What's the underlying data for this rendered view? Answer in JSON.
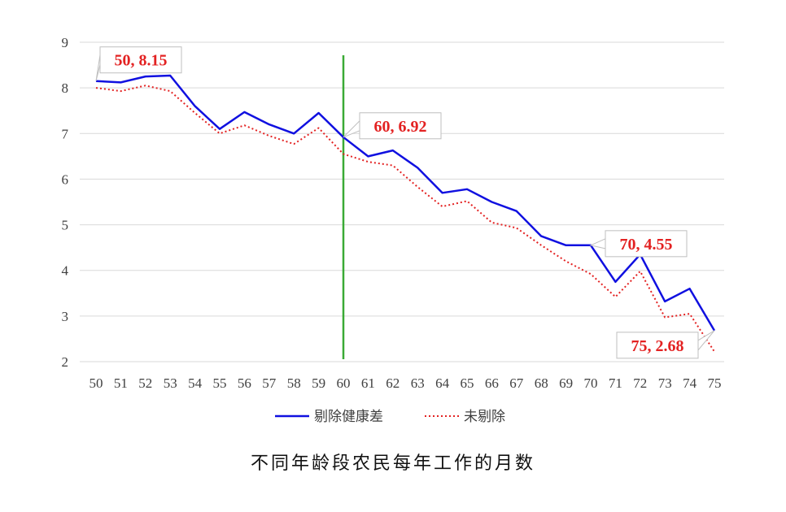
{
  "chart_data": {
    "type": "line",
    "title": "不同年龄段农民每年工作的月数",
    "xlabel": "",
    "ylabel": "",
    "x": [
      50,
      51,
      52,
      53,
      54,
      55,
      56,
      57,
      58,
      59,
      60,
      61,
      62,
      63,
      64,
      65,
      66,
      67,
      68,
      69,
      70,
      71,
      72,
      73,
      74,
      75
    ],
    "ylim": [
      2,
      9
    ],
    "yticks": [
      2,
      3,
      4,
      5,
      6,
      7,
      8,
      9
    ],
    "grid": true,
    "legend": "bottom",
    "reference_line": {
      "x": 60,
      "color": "#3aaa35"
    },
    "series": [
      {
        "name": "剔除健康差",
        "style": "solid",
        "color": "#1010e0",
        "values": [
          8.15,
          8.12,
          8.25,
          8.27,
          7.6,
          7.1,
          7.47,
          7.2,
          7.0,
          7.45,
          6.92,
          6.5,
          6.63,
          6.25,
          5.7,
          5.78,
          5.5,
          5.3,
          4.75,
          4.55,
          4.55,
          3.75,
          4.35,
          3.32,
          3.6,
          2.68
        ]
      },
      {
        "name": "未剔除",
        "style": "dotted",
        "color": "#e32222",
        "values": [
          8.0,
          7.93,
          8.05,
          7.93,
          7.45,
          7.0,
          7.18,
          6.95,
          6.77,
          7.12,
          6.55,
          6.38,
          6.3,
          5.83,
          5.4,
          5.52,
          5.05,
          4.93,
          4.55,
          4.2,
          3.92,
          3.42,
          3.98,
          2.97,
          3.05,
          2.22
        ]
      }
    ],
    "annotations": [
      {
        "label": "50, 8.15",
        "x": 50,
        "y": 8.15
      },
      {
        "label": "60, 6.92",
        "x": 60,
        "y": 6.92
      },
      {
        "label": "70, 4.55",
        "x": 70,
        "y": 4.55
      },
      {
        "label": "75, 2.68",
        "x": 75,
        "y": 2.68
      }
    ]
  }
}
